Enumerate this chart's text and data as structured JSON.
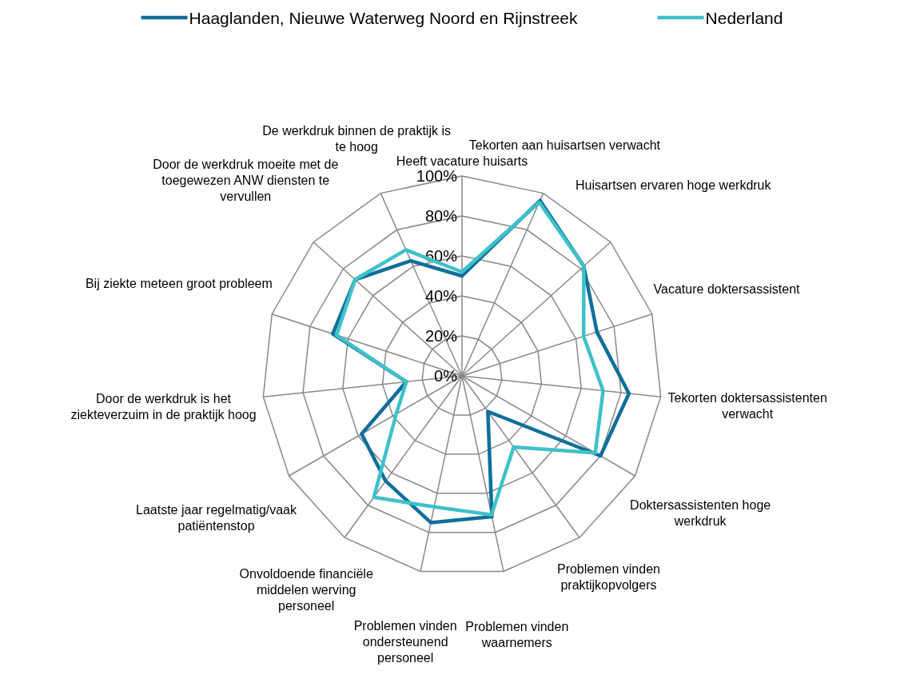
{
  "chart_data": {
    "type": "radar",
    "categories": [
      "Heeft vacature huisarts",
      "Tekorten aan huisartsen verwacht",
      "Huisartsen ervaren hoge werkdruk",
      "Vacature doktersassistent",
      "Tekorten doktersassistenten verwacht",
      "Doktersassistenten hoge werkdruk",
      "Problemen vinden praktijkopvolgers",
      "Problemen vinden waarnemers",
      "Problemen vinden ondersteunend personeel",
      "Onvoldoende financiële middelen werving personeel",
      "Laatste jaar regelmatig/vaak patiëntenstop",
      "Door de werkdruk is het ziekteverzuim in de praktijk hoog",
      "Bij ziekte meteen groot probleem",
      "Door de werkdruk moeite met de toegewezen ANW diensten te vervullen",
      "De werkdruk binnen de praktijk is te hoog"
    ],
    "series": [
      {
        "name": "Haaglanden, Nieuwe Waterweg Noord en Rijnstreek",
        "color": "#0e6f9a",
        "values": [
          50,
          96,
          82,
          71,
          84,
          80,
          22,
          72,
          75,
          65,
          58,
          28,
          68,
          72,
          63
        ]
      },
      {
        "name": "Nederland",
        "color": "#3fc1c9",
        "values": [
          52,
          95,
          82,
          64,
          71,
          77,
          44,
          71,
          67,
          75,
          38,
          28,
          66,
          72,
          69
        ]
      }
    ],
    "ylim": [
      0,
      100
    ],
    "yticks": [
      {
        "value": 0,
        "label": "0%"
      },
      {
        "value": 20,
        "label": "20%"
      },
      {
        "value": 40,
        "label": "40%"
      },
      {
        "value": 60,
        "label": "60%"
      },
      {
        "value": 80,
        "label": "80%"
      },
      {
        "value": 100,
        "label": "100%"
      }
    ],
    "grid": true,
    "legend": "top",
    "marker": "none"
  }
}
